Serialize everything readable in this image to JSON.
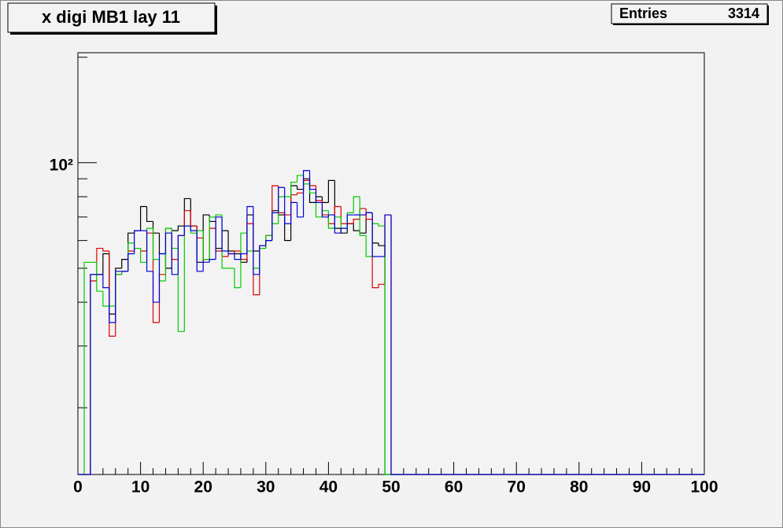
{
  "chart_data": {
    "type": "histogram",
    "title": "x digi MB1 lay 11",
    "stats": {
      "label": "Entries",
      "value": 3314
    },
    "log_y": true,
    "bins": [
      0,
      1,
      2,
      3,
      4,
      5,
      6,
      7,
      8,
      9,
      10,
      11,
      12,
      13,
      14,
      15,
      16,
      17,
      18,
      19,
      20,
      21,
      22,
      23,
      24,
      25,
      26,
      27,
      28,
      29,
      30,
      31,
      32,
      33,
      34,
      35,
      36,
      37,
      38,
      39,
      40,
      41,
      42,
      43,
      44,
      45,
      46,
      47,
      48,
      49,
      50,
      51,
      52,
      53,
      54,
      55,
      56,
      57,
      58,
      59,
      60,
      61,
      62,
      63,
      64,
      65,
      66,
      67,
      68,
      69,
      70,
      71,
      72,
      73,
      74,
      75,
      76,
      77,
      78,
      79,
      80,
      81,
      82,
      83,
      84,
      85,
      86,
      87,
      88,
      89,
      90,
      91,
      92,
      93,
      94,
      95,
      96,
      97,
      98,
      99,
      100
    ],
    "xlim": [
      0,
      100
    ],
    "xticks": [
      0,
      10,
      20,
      30,
      40,
      50,
      60,
      70,
      80,
      90,
      100
    ],
    "xminor_divisions": 5,
    "ylim": [
      12.9,
      206
    ],
    "yticks": [
      {
        "value": 100,
        "label": "10²"
      }
    ],
    "yminor": [
      20,
      30,
      40,
      50,
      60,
      70,
      80,
      90,
      200
    ],
    "series": [
      {
        "color": "#000000",
        "values": [
          0,
          0,
          48,
          48,
          55,
          37,
          50,
          53,
          63,
          64,
          75,
          68,
          63,
          55,
          50,
          64,
          66,
          79,
          66,
          52,
          71,
          68,
          57,
          64,
          56,
          55,
          52,
          71,
          56,
          57,
          60,
          73,
          71,
          60,
          86,
          84,
          90,
          77,
          80,
          77,
          89,
          65,
          63,
          67,
          64,
          63,
          72,
          59,
          58,
          0,
          0,
          0,
          0,
          0,
          0,
          0,
          0,
          0,
          0,
          0,
          0,
          0,
          0,
          0,
          0,
          0,
          0,
          0,
          0,
          0,
          0,
          0,
          0,
          0,
          0,
          0,
          0,
          0,
          0,
          0,
          0,
          0,
          0,
          0,
          0,
          0,
          0,
          0,
          0,
          0,
          0,
          0,
          0,
          0,
          0,
          0,
          0,
          0,
          0,
          0
        ]
      },
      {
        "color": "#dd0000",
        "values": [
          0,
          0,
          46,
          57,
          56,
          32,
          48,
          49,
          56,
          57,
          56,
          63,
          35,
          48,
          65,
          53,
          62,
          73,
          66,
          61,
          53,
          65,
          56,
          54,
          55,
          56,
          53,
          67,
          42,
          58,
          62,
          86,
          72,
          71,
          81,
          82,
          89,
          86,
          78,
          71,
          67,
          75,
          67,
          67,
          69,
          74,
          69,
          44,
          45,
          71,
          0,
          0,
          0,
          0,
          0,
          0,
          0,
          0,
          0,
          0,
          0,
          0,
          0,
          0,
          0,
          0,
          0,
          0,
          0,
          0,
          0,
          0,
          0,
          0,
          0,
          0,
          0,
          0,
          0,
          0,
          0,
          0,
          0,
          0,
          0,
          0,
          0,
          0,
          0,
          0,
          0,
          0,
          0,
          0,
          0,
          0,
          0,
          0,
          0,
          0
        ]
      },
      {
        "color": "#00cc00",
        "values": [
          0,
          52,
          52,
          43,
          39,
          39,
          48,
          49,
          59,
          57,
          52,
          65,
          53,
          46,
          65,
          57,
          33,
          66,
          63,
          64,
          53,
          70,
          71,
          50,
          50,
          44,
          63,
          56,
          50,
          57,
          62,
          67,
          80,
          80,
          88,
          92,
          87,
          82,
          70,
          73,
          65,
          70,
          65,
          72,
          80,
          62,
          54,
          67,
          66,
          0,
          0,
          0,
          0,
          0,
          0,
          0,
          0,
          0,
          0,
          0,
          0,
          0,
          0,
          0,
          0,
          0,
          0,
          0,
          0,
          0,
          0,
          0,
          0,
          0,
          0,
          0,
          0,
          0,
          0,
          0,
          0,
          0,
          0,
          0,
          0,
          0,
          0,
          0,
          0,
          0,
          0,
          0,
          0,
          0,
          0,
          0,
          0,
          0,
          0,
          0
        ]
      },
      {
        "color": "#0000dd",
        "values": [
          0,
          0,
          48,
          48,
          44,
          35,
          49,
          49,
          55,
          64,
          64,
          49,
          40,
          55,
          63,
          48,
          62,
          66,
          64,
          49,
          52,
          53,
          70,
          56,
          55,
          53,
          55,
          75,
          48,
          58,
          60,
          72,
          85,
          67,
          77,
          70,
          95,
          84,
          77,
          70,
          71,
          63,
          65,
          71,
          71,
          71,
          72,
          54,
          54,
          71,
          0,
          0,
          0,
          0,
          0,
          0,
          0,
          0,
          0,
          0,
          0,
          0,
          0,
          0,
          0,
          0,
          0,
          0,
          0,
          0,
          0,
          0,
          0,
          0,
          0,
          0,
          0,
          0,
          0,
          0,
          0,
          0,
          0,
          0,
          0,
          0,
          0,
          0,
          0,
          0,
          0,
          0,
          0,
          0,
          0,
          0,
          0,
          0,
          0,
          0
        ]
      }
    ]
  }
}
